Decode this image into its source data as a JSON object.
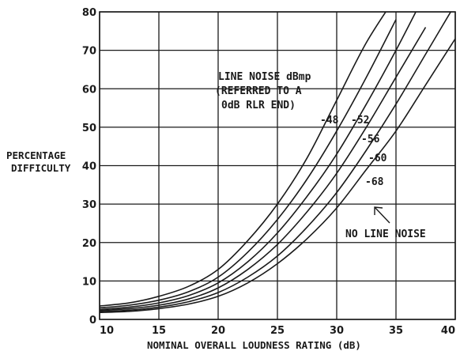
{
  "chart_data": {
    "type": "line",
    "title": "",
    "xlabel": "NOMINAL OVERALL LOUDNESS RATING (dB)",
    "ylabel": [
      "PERCENTAGE",
      "DIFFICULTY"
    ],
    "xlim": [
      10,
      40
    ],
    "ylim": [
      0,
      80
    ],
    "x_ticks": [
      10,
      15,
      20,
      25,
      30,
      35,
      40
    ],
    "y_ticks": [
      0,
      10,
      20,
      30,
      40,
      50,
      60,
      70,
      80
    ],
    "grid": true,
    "legend_title": [
      "LINE NOISE dBmp",
      "(REFERRED TO A",
      "0dB RLR END)"
    ],
    "annotation": "NO LINE NOISE",
    "x": [
      10,
      12.5,
      15,
      17.5,
      20,
      22.5,
      25,
      27.5,
      30,
      32.5,
      35,
      37.5,
      40
    ],
    "series": [
      {
        "name": "-48",
        "values": [
          3.5,
          4.3,
          6,
          8.6,
          13,
          20.5,
          30,
          42,
          57,
          72,
          84,
          null,
          null
        ]
      },
      {
        "name": "-52",
        "values": [
          3.0,
          3.7,
          5,
          7.2,
          11,
          17.5,
          26,
          36.5,
          49,
          63,
          78,
          null,
          null
        ]
      },
      {
        "name": "-56",
        "values": [
          2.6,
          3.2,
          4.3,
          6.2,
          9.5,
          15,
          22.5,
          32,
          43,
          56,
          70,
          85,
          null
        ]
      },
      {
        "name": "-60",
        "values": [
          2.3,
          2.8,
          3.7,
          5.3,
          8.2,
          13,
          19.5,
          28,
          38,
          50,
          63,
          76,
          null
        ]
      },
      {
        "name": "-68",
        "values": [
          2.0,
          2.4,
          3.2,
          4.6,
          7,
          11,
          16.5,
          24,
          33,
          44,
          56,
          69,
          82
        ]
      },
      {
        "name": "NO LINE NOISE",
        "values": [
          1.8,
          2.1,
          2.8,
          4,
          6,
          9.5,
          14.5,
          21,
          29,
          39,
          49,
          61,
          73
        ]
      }
    ]
  }
}
